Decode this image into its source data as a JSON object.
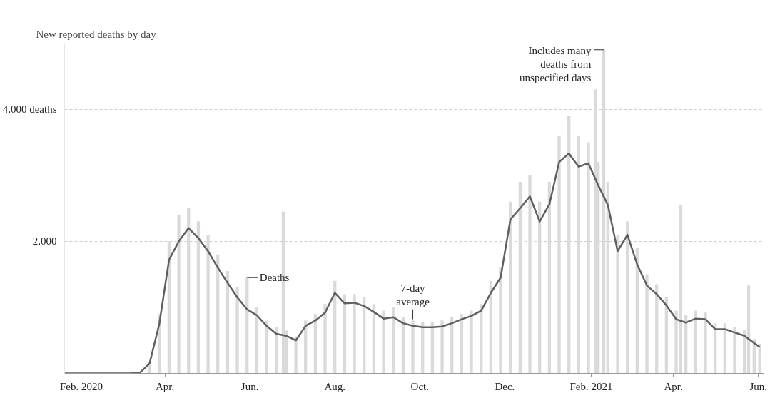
{
  "chart_data": {
    "type": "bar",
    "title": "New reported deaths by day",
    "xlim": [
      "2020-01-20",
      "2021-06-05"
    ],
    "xticks": [
      {
        "value": "2020-02-01",
        "label": "Feb. 2020"
      },
      {
        "value": "2020-04-01",
        "label": "Apr."
      },
      {
        "value": "2020-06-01",
        "label": "Jun."
      },
      {
        "value": "2020-08-01",
        "label": "Aug."
      },
      {
        "value": "2020-10-01",
        "label": "Oct."
      },
      {
        "value": "2020-12-01",
        "label": "Dec."
      },
      {
        "value": "2021-02-01",
        "label": "Feb. 2021"
      },
      {
        "value": "2021-04-01",
        "label": "Apr."
      },
      {
        "value": "2021-06-01",
        "label": "Jun."
      }
    ],
    "ylim": [
      0,
      5000
    ],
    "yticks": [
      {
        "value": 2000,
        "label": "2,000"
      },
      {
        "value": 4000,
        "label": "4,000 deaths"
      }
    ],
    "grid": "y",
    "series": [
      {
        "color": "#dadada",
        "x": [
          "2020-02-01",
          "2020-02-08",
          "2020-02-15",
          "2020-02-22",
          "2020-02-29",
          "2020-03-07",
          "2020-03-14",
          "2020-03-21",
          "2020-03-28",
          "2020-04-04",
          "2020-04-11",
          "2020-04-18",
          "2020-04-25",
          "2020-05-02",
          "2020-05-09",
          "2020-05-16",
          "2020-05-23",
          "2020-05-30",
          "2020-06-06",
          "2020-06-13",
          "2020-06-20",
          "2020-06-25",
          "2020-06-27",
          "2020-07-04",
          "2020-07-11",
          "2020-07-18",
          "2020-07-25",
          "2020-08-01",
          "2020-08-08",
          "2020-08-15",
          "2020-08-22",
          "2020-08-29",
          "2020-09-05",
          "2020-09-12",
          "2020-09-19",
          "2020-09-26",
          "2020-10-03",
          "2020-10-10",
          "2020-10-17",
          "2020-10-24",
          "2020-10-31",
          "2020-11-07",
          "2020-11-14",
          "2020-11-21",
          "2020-11-28",
          "2020-12-05",
          "2020-12-12",
          "2020-12-19",
          "2020-12-26",
          "2021-01-02",
          "2021-01-09",
          "2021-01-16",
          "2021-01-23",
          "2021-01-30",
          "2021-02-04",
          "2021-02-06",
          "2021-02-10",
          "2021-02-13",
          "2021-02-20",
          "2021-02-27",
          "2021-03-06",
          "2021-03-13",
          "2021-03-20",
          "2021-03-27",
          "2021-04-03",
          "2021-04-06",
          "2021-04-10",
          "2021-04-17",
          "2021-04-24",
          "2021-05-01",
          "2021-05-08",
          "2021-05-15",
          "2021-05-22",
          "2021-05-25",
          "2021-05-29",
          "2021-06-02"
        ],
        "values": [
          0,
          0,
          0,
          0,
          0,
          0,
          10,
          170,
          900,
          2000,
          2400,
          2500,
          2300,
          2100,
          1800,
          1550,
          1300,
          1450,
          1000,
          800,
          700,
          2450,
          650,
          560,
          800,
          900,
          1050,
          1400,
          1200,
          1200,
          1150,
          1050,
          950,
          1000,
          850,
          800,
          780,
          780,
          800,
          850,
          900,
          950,
          1050,
          1400,
          1600,
          2600,
          2900,
          3000,
          2600,
          2900,
          3600,
          3900,
          3600,
          3500,
          4300,
          3200,
          4900,
          2900,
          2100,
          2300,
          1900,
          1500,
          1350,
          1150,
          950,
          2550,
          880,
          950,
          920,
          760,
          760,
          700,
          650,
          1330,
          520,
          450
        ]
      },
      {
        "type": "line",
        "color": "#5f5f5f",
        "x": [
          "2020-01-20",
          "2020-02-01",
          "2020-02-08",
          "2020-02-15",
          "2020-02-22",
          "2020-02-29",
          "2020-03-07",
          "2020-03-14",
          "2020-03-21",
          "2020-03-28",
          "2020-04-04",
          "2020-04-11",
          "2020-04-18",
          "2020-04-25",
          "2020-05-02",
          "2020-05-09",
          "2020-05-16",
          "2020-05-23",
          "2020-05-30",
          "2020-06-06",
          "2020-06-13",
          "2020-06-20",
          "2020-06-27",
          "2020-07-04",
          "2020-07-11",
          "2020-07-18",
          "2020-07-25",
          "2020-08-01",
          "2020-08-08",
          "2020-08-15",
          "2020-08-22",
          "2020-08-29",
          "2020-09-05",
          "2020-09-12",
          "2020-09-19",
          "2020-09-26",
          "2020-10-03",
          "2020-10-10",
          "2020-10-17",
          "2020-10-24",
          "2020-10-31",
          "2020-11-07",
          "2020-11-14",
          "2020-11-21",
          "2020-11-28",
          "2020-12-05",
          "2020-12-12",
          "2020-12-19",
          "2020-12-26",
          "2021-01-02",
          "2021-01-09",
          "2021-01-16",
          "2021-01-23",
          "2021-01-30",
          "2021-02-06",
          "2021-02-13",
          "2021-02-20",
          "2021-02-27",
          "2021-03-06",
          "2021-03-13",
          "2021-03-20",
          "2021-03-27",
          "2021-04-03",
          "2021-04-10",
          "2021-04-17",
          "2021-04-24",
          "2021-05-01",
          "2021-05-08",
          "2021-05-15",
          "2021-05-22",
          "2021-05-29",
          "2021-06-02"
        ],
        "values": [
          0,
          0,
          0,
          0,
          0,
          0,
          0,
          10,
          150,
          750,
          1720,
          2000,
          2200,
          2050,
          1850,
          1600,
          1370,
          1150,
          970,
          880,
          720,
          600,
          570,
          500,
          720,
          800,
          920,
          1220,
          1060,
          1070,
          1020,
          930,
          830,
          850,
          760,
          720,
          700,
          700,
          710,
          760,
          820,
          870,
          950,
          1220,
          1450,
          2330,
          2500,
          2680,
          2300,
          2560,
          3200,
          3330,
          3130,
          3180,
          2850,
          2550,
          1850,
          2100,
          1650,
          1330,
          1200,
          1030,
          820,
          770,
          830,
          820,
          670,
          670,
          620,
          570,
          460,
          400
        ]
      }
    ],
    "annotations": [
      {
        "text": "Deaths",
        "x": "2020-05-30",
        "y": 1450
      },
      {
        "text": "7-day average",
        "x": "2020-09-26",
        "y": 820
      },
      {
        "text": "Includes many deaths from unspecified days",
        "x": "2021-02-10",
        "y": 4900
      }
    ]
  }
}
